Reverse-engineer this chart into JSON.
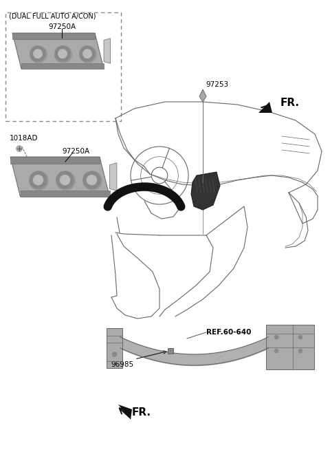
{
  "bg_color": "#ffffff",
  "labels": {
    "dual_box_title": "(DUAL FULL AUTO A/CON)",
    "part_97250A_top": "97250A",
    "part_97250A_bottom": "97250A",
    "part_1018AD": "1018AD",
    "part_97253": "97253",
    "part_96985": "96985",
    "ref_60_640": "REF.60-640",
    "fr_top": "FR.",
    "fr_bottom": "FR."
  },
  "colors": {
    "outline": "#666666",
    "part_fill": "#c8c8c8",
    "part_mid": "#aaaaaa",
    "part_dark": "#888888",
    "text": "#000000",
    "black": "#111111"
  }
}
